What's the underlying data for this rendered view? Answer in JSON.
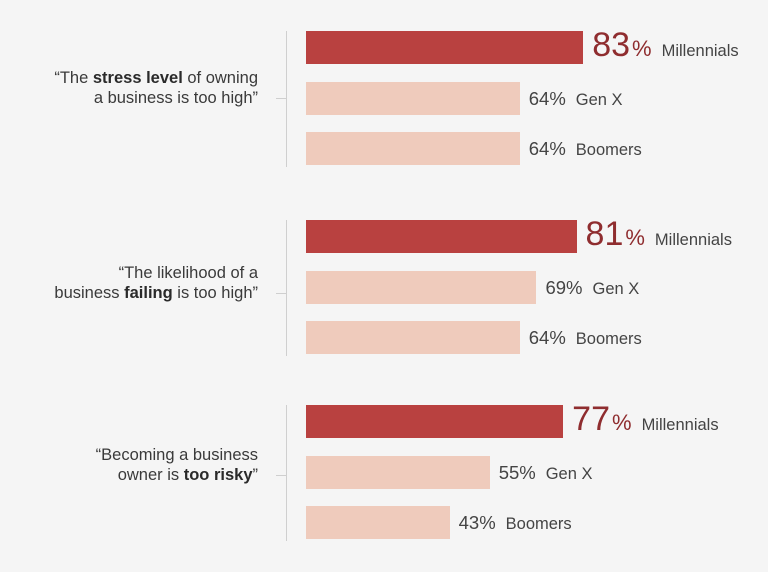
{
  "colors": {
    "highlight": "#b94140",
    "muted": "#efcbbc",
    "highlight_text": "#8f2d2f"
  },
  "chart_data": {
    "type": "bar",
    "orientation": "horizontal",
    "unit": "%",
    "categories": [
      "Millennials",
      "Gen X",
      "Boomers"
    ],
    "groups": [
      {
        "label_parts": [
          {
            "text": "“The "
          },
          {
            "text": "stress level",
            "bold": true
          },
          {
            "text": " of owning"
          },
          {
            "text": "\n"
          },
          {
            "text": "a business is too high”"
          }
        ],
        "values": [
          83,
          64,
          64
        ]
      },
      {
        "label_parts": [
          {
            "text": "“The likelihood of a"
          },
          {
            "text": "\n"
          },
          {
            "text": "business "
          },
          {
            "text": "failing",
            "bold": true
          },
          {
            "text": " is too high”"
          }
        ],
        "values": [
          81,
          69,
          64
        ]
      },
      {
        "label_parts": [
          {
            "text": "“Becoming a business"
          },
          {
            "text": "\n"
          },
          {
            "text": "owner is "
          },
          {
            "text": "too risky",
            "bold": true
          },
          {
            "text": "”"
          }
        ],
        "values": [
          77,
          55,
          43
        ]
      }
    ]
  }
}
